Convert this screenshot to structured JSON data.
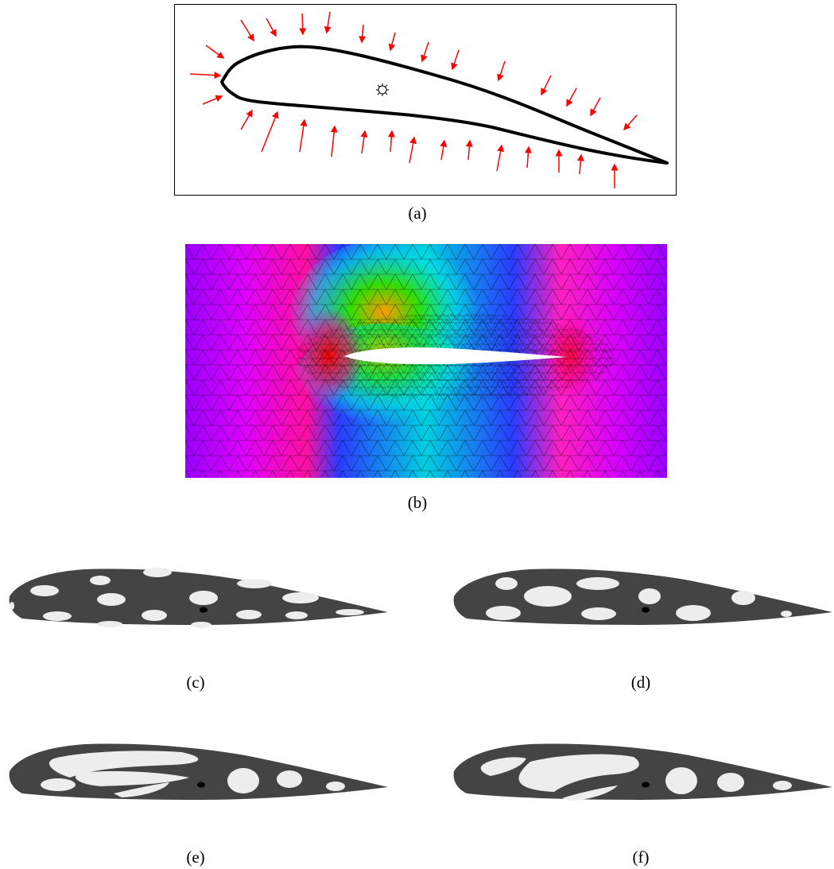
{
  "figure": {
    "panels": [
      {
        "id": "a",
        "label": "(a)"
      },
      {
        "id": "b",
        "label": "(b)"
      },
      {
        "id": "c",
        "label": "(c)"
      },
      {
        "id": "d",
        "label": "(d)"
      },
      {
        "id": "e",
        "label": "(e)"
      },
      {
        "id": "f",
        "label": "(f)"
      }
    ]
  },
  "colors": {
    "arrow": "#ff0000",
    "airfoil_fill": "#444444",
    "hole_fill": "#ededed"
  }
}
